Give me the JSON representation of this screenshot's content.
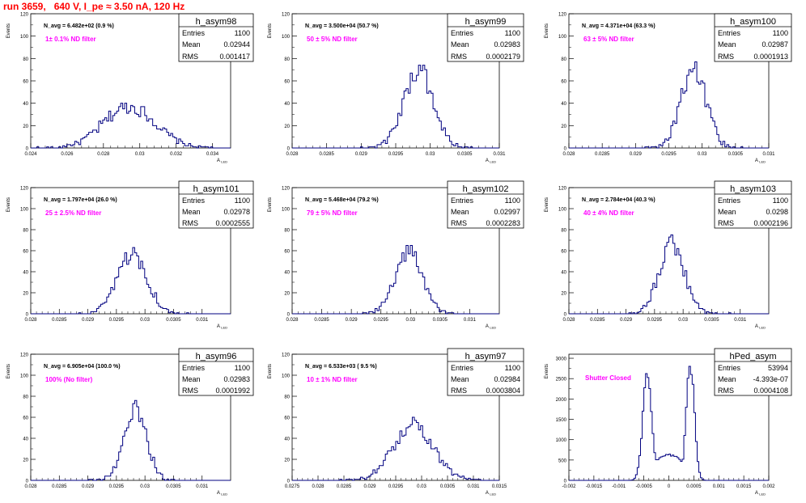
{
  "title": "run 3659,   640 V, I_pe ≈ 3.50 nA, 120 Hz",
  "chart_data": [
    {
      "type": "histogram",
      "hist_name": "h_asym98",
      "navg": "N_avg = 6.482e+02 (0.9 %)",
      "label": "1± 0.1% ND filter",
      "stats": [
        [
          "Entries",
          "1100"
        ],
        [
          "Mean",
          "0.02944"
        ],
        [
          "RMS",
          "0.001417"
        ]
      ],
      "xlabel": "A_LED",
      "ylabel": "Events",
      "xlim": [
        0.024,
        0.035
      ],
      "ylim": [
        0,
        120
      ],
      "xticks": [
        "0.024",
        "0.026",
        "0.028",
        "0.03",
        "0.032",
        "0.034"
      ],
      "yticks": [
        "0",
        "20",
        "40",
        "60",
        "80",
        "100",
        "120"
      ],
      "mean": 0.02944,
      "rms": 0.001417,
      "peak": 37,
      "nbins": 100
    },
    {
      "type": "histogram",
      "hist_name": "h_asym99",
      "navg": "N_avg = 3.500e+04 (50.7 %)",
      "label": "50 ± 5% ND filter",
      "stats": [
        [
          "Entries",
          "1100"
        ],
        [
          "Mean",
          "0.02983"
        ],
        [
          "RMS",
          "0.0002179"
        ]
      ],
      "xlabel": "A_LED",
      "ylabel": "Events",
      "xlim": [
        0.028,
        0.031
      ],
      "ylim": [
        0,
        120
      ],
      "xticks": [
        "0.028",
        "0.0285",
        "0.029",
        "0.0295",
        "0.03",
        "0.0305",
        "0.031"
      ],
      "yticks": [
        "0",
        "20",
        "40",
        "60",
        "80",
        "100",
        "120"
      ],
      "mean": 0.02983,
      "rms": 0.0002179,
      "peak": 69,
      "nbins": 100
    },
    {
      "type": "histogram",
      "hist_name": "h_asym100",
      "navg": "N_avg = 4.371e+04 (63.3 %)",
      "label": "63 ± 5% ND filter",
      "stats": [
        [
          "Entries",
          "1100"
        ],
        [
          "Mean",
          "0.02987"
        ],
        [
          "RMS",
          "0.0001913"
        ]
      ],
      "xlabel": "A_LED",
      "ylabel": "Events",
      "xlim": [
        0.028,
        0.031
      ],
      "ylim": [
        0,
        120
      ],
      "xticks": [
        "0.028",
        "0.0285",
        "0.029",
        "0.0295",
        "0.03",
        "0.0305",
        "0.031"
      ],
      "yticks": [
        "0",
        "20",
        "40",
        "60",
        "80",
        "100",
        "120"
      ],
      "mean": 0.02987,
      "rms": 0.0001913,
      "peak": 70,
      "nbins": 100
    },
    {
      "type": "histogram",
      "hist_name": "h_asym101",
      "navg": "N_avg = 1.797e+04 (26.0 %)",
      "label": "25 ± 2.5% ND filter",
      "stats": [
        [
          "Entries",
          "1100"
        ],
        [
          "Mean",
          "0.02978"
        ],
        [
          "RMS",
          "0.0002555"
        ]
      ],
      "xlabel": "A_LED",
      "ylabel": "Events",
      "xlim": [
        0.028,
        0.0315
      ],
      "ylim": [
        0,
        120
      ],
      "xticks": [
        "0.028",
        "0.0285",
        "0.029",
        "0.0295",
        "0.03",
        "0.0305",
        "0.031"
      ],
      "yticks": [
        "0",
        "20",
        "40",
        "60",
        "80",
        "100",
        "120"
      ],
      "mean": 0.02978,
      "rms": 0.0002555,
      "peak": 58,
      "nbins": 100
    },
    {
      "type": "histogram",
      "hist_name": "h_asym102",
      "navg": "N_avg = 5.468e+04 (79.2 %)",
      "label": "79 ± 5% ND filter",
      "stats": [
        [
          "Entries",
          "1100"
        ],
        [
          "Mean",
          "0.02997"
        ],
        [
          "RMS",
          "0.0002283"
        ]
      ],
      "xlabel": "A_LED",
      "ylabel": "Events",
      "xlim": [
        0.028,
        0.0315
      ],
      "ylim": [
        0,
        120
      ],
      "xticks": [
        "0.028",
        "0.0285",
        "0.029",
        "0.0295",
        "0.03",
        "0.0305",
        "0.031"
      ],
      "yticks": [
        "0",
        "20",
        "40",
        "60",
        "80",
        "100",
        "120"
      ],
      "mean": 0.02997,
      "rms": 0.0002283,
      "peak": 61,
      "nbins": 100
    },
    {
      "type": "histogram",
      "hist_name": "h_asym103",
      "navg": "N_avg = 2.784e+04 (40.3 %)",
      "label": "40 ± 4% ND filter",
      "stats": [
        [
          "Entries",
          "1100"
        ],
        [
          "Mean",
          "0.0298"
        ],
        [
          "RMS",
          "0.0002196"
        ]
      ],
      "xlabel": "A_LED",
      "ylabel": "Events",
      "xlim": [
        0.028,
        0.0315
      ],
      "ylim": [
        0,
        120
      ],
      "xticks": [
        "0.028",
        "0.0285",
        "0.029",
        "0.0295",
        "0.03",
        "0.0305",
        "0.031"
      ],
      "yticks": [
        "0",
        "20",
        "40",
        "60",
        "80",
        "100",
        "120"
      ],
      "mean": 0.0298,
      "rms": 0.0002196,
      "peak": 67,
      "nbins": 100
    },
    {
      "type": "histogram",
      "hist_name": "h_asym96",
      "navg": "N_avg = 6.905e+04 (100.0 %)",
      "label": "100% (No filter)",
      "stats": [
        [
          "Entries",
          "1100"
        ],
        [
          "Mean",
          "0.02983"
        ],
        [
          "RMS",
          "0.0001992"
        ]
      ],
      "xlabel": "A_LED",
      "ylabel": "Events",
      "xlim": [
        0.028,
        0.0315
      ],
      "ylim": [
        0,
        120
      ],
      "xticks": [
        "0.028",
        "0.0285",
        "0.029",
        "0.0295",
        "0.03",
        "0.0305",
        "0.031"
      ],
      "yticks": [
        "0",
        "20",
        "40",
        "60",
        "80",
        "100",
        "120"
      ],
      "mean": 0.02983,
      "rms": 0.0001992,
      "peak": 67,
      "nbins": 100
    },
    {
      "type": "histogram",
      "hist_name": "h_asym97",
      "navg": "N_avg = 6.533e+03 ( 9.5 %)",
      "label": "10 ± 1% ND filter",
      "stats": [
        [
          "Entries",
          "1100"
        ],
        [
          "Mean",
          "0.02984"
        ],
        [
          "RMS",
          "0.0003804"
        ]
      ],
      "xlabel": "A_LED",
      "ylabel": "Events",
      "xlim": [
        0.0275,
        0.0315
      ],
      "ylim": [
        0,
        120
      ],
      "xticks": [
        "0.0275",
        "0.028",
        "0.0285",
        "0.029",
        "0.0295",
        "0.03",
        "0.0305",
        "0.031",
        "0.0315"
      ],
      "yticks": [
        "0",
        "20",
        "40",
        "60",
        "80",
        "100",
        "120"
      ],
      "mean": 0.02984,
      "rms": 0.0003804,
      "peak": 54,
      "nbins": 100
    },
    {
      "type": "histogram",
      "hist_name": "hPed_asym",
      "navg": "",
      "label": "Shutter Closed",
      "stats": [
        [
          "Entries",
          "53994"
        ],
        [
          "Mean",
          "-4.393e-07"
        ],
        [
          "RMS",
          "0.0004108"
        ]
      ],
      "xlabel": "A_LED",
      "ylabel": "Events",
      "xlim": [
        -0.002,
        0.002
      ],
      "ylim": [
        0,
        3100
      ],
      "xticks": [
        "-0.002",
        "-0.0015",
        "-0.001",
        "-0.0005",
        "0",
        "0.0005",
        "0.001",
        "0.0015",
        "0.002"
      ],
      "yticks": [
        "0",
        "500",
        "1000",
        "1500",
        "2000",
        "2500",
        "3000"
      ],
      "peaks": [
        {
          "mean": -0.00043,
          "sigma": 9e-05,
          "height": 2600
        },
        {
          "mean": 0.00043,
          "sigma": 8e-05,
          "height": 2850
        }
      ],
      "valley": 620,
      "nbins": 120
    }
  ]
}
